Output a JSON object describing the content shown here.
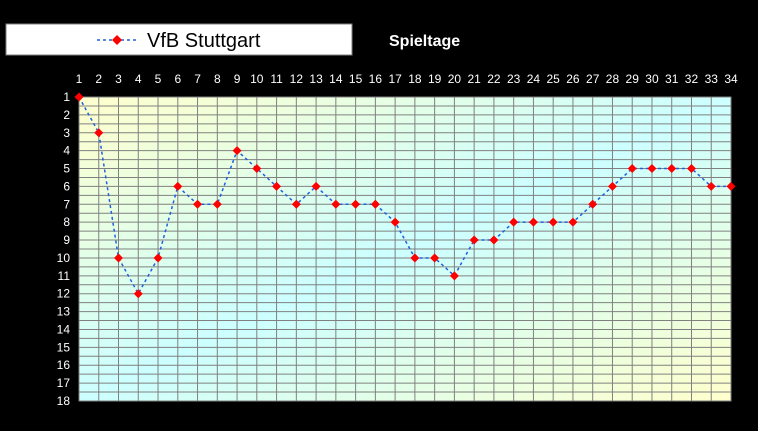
{
  "chart_data": {
    "type": "line",
    "title": "Spieltage",
    "x": [
      1,
      2,
      3,
      4,
      5,
      6,
      7,
      8,
      9,
      10,
      11,
      12,
      13,
      14,
      15,
      16,
      17,
      18,
      19,
      20,
      21,
      22,
      23,
      24,
      25,
      26,
      27,
      28,
      29,
      30,
      31,
      32,
      33,
      34
    ],
    "xlim": [
      1,
      34
    ],
    "ylim": [
      1,
      18
    ],
    "y_inverted": true,
    "x_axis_position": "top",
    "yticks": [
      1,
      2,
      3,
      4,
      5,
      6,
      7,
      8,
      9,
      10,
      11,
      12,
      13,
      14,
      15,
      16,
      17,
      18
    ],
    "grid": true,
    "legend_position": "top-left",
    "series": [
      {
        "name": "VfB Stuttgart",
        "values": [
          1,
          3,
          10,
          12,
          10,
          6,
          7,
          7,
          4,
          5,
          6,
          7,
          6,
          7,
          7,
          7,
          8,
          10,
          10,
          11,
          9,
          9,
          8,
          8,
          8,
          8,
          7,
          6,
          5,
          5,
          5,
          5,
          6,
          6
        ],
        "line_color": "#1f5fe0",
        "line_style": "dashed",
        "marker": "diamond",
        "marker_color": "#ff0000"
      }
    ],
    "background_gradient": [
      "#ffffcc",
      "#ccffff",
      "#ffffcc"
    ]
  }
}
